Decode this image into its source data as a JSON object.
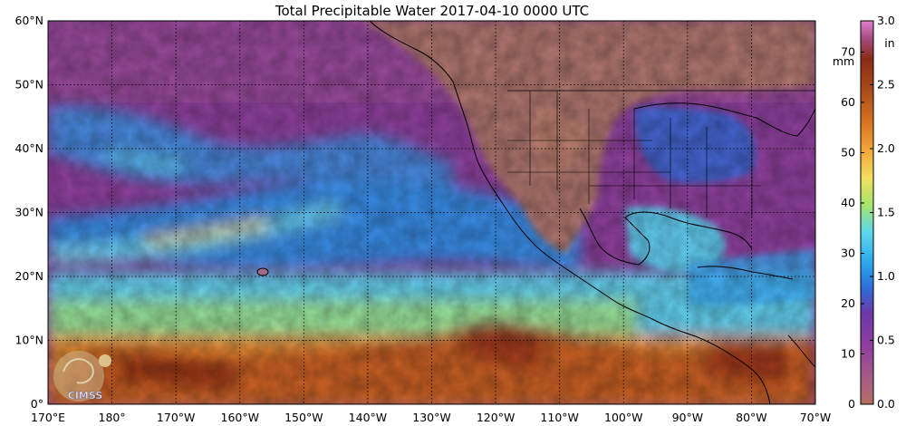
{
  "title": "Total Precipitable Water  2017-04-10 0000 UTC",
  "latitude_labels": [
    "0°",
    "10°N",
    "20°N",
    "30°N",
    "40°N",
    "50°N",
    "60°N"
  ],
  "longitude_labels": [
    "170°E",
    "180°",
    "170°W",
    "160°W",
    "150°W",
    "140°W",
    "130°W",
    "120°W",
    "110°W",
    "100°W",
    "90°W",
    "80°W",
    "70°W"
  ],
  "map_extent": {
    "lon_min": 170,
    "lon_max": 290,
    "lat_min": 0,
    "lat_max": 60
  },
  "colorbar": {
    "mm_label": "mm",
    "in_label": "in",
    "mm_ticks": [
      "0",
      "10",
      "20",
      "30",
      "40",
      "50",
      "60",
      "70"
    ],
    "in_ticks": [
      "0.0",
      "0.5",
      "1.0",
      "1.5",
      "2.0",
      "2.5",
      "3.0"
    ],
    "mm_range": [
      0,
      76.2
    ],
    "stops": [
      {
        "v": 0.0,
        "c": "#b46e63"
      },
      {
        "v": 0.07,
        "c": "#a55c86"
      },
      {
        "v": 0.16,
        "c": "#8c3da0"
      },
      {
        "v": 0.24,
        "c": "#6a3aa8"
      },
      {
        "v": 0.3,
        "c": "#2f6bd8"
      },
      {
        "v": 0.37,
        "c": "#2aa9ee"
      },
      {
        "v": 0.45,
        "c": "#5fd8ea"
      },
      {
        "v": 0.52,
        "c": "#a5e56a"
      },
      {
        "v": 0.59,
        "c": "#f2e060"
      },
      {
        "v": 0.66,
        "c": "#f4a83a"
      },
      {
        "v": 0.74,
        "c": "#d6711f"
      },
      {
        "v": 0.83,
        "c": "#a5461a"
      },
      {
        "v": 0.9,
        "c": "#8a2b18"
      },
      {
        "v": 0.95,
        "c": "#a04a78"
      },
      {
        "v": 1.0,
        "c": "#e07fd0"
      }
    ]
  },
  "logo_text": "CIMSS",
  "colors": {
    "ocean_purple": "#8a3e98",
    "land_brown": "#a9726a",
    "moist_blue": "#2f8fe6",
    "tropical_orange": "#e07a2a",
    "dry_magenta": "#a25a8c",
    "grid": "#000000"
  }
}
